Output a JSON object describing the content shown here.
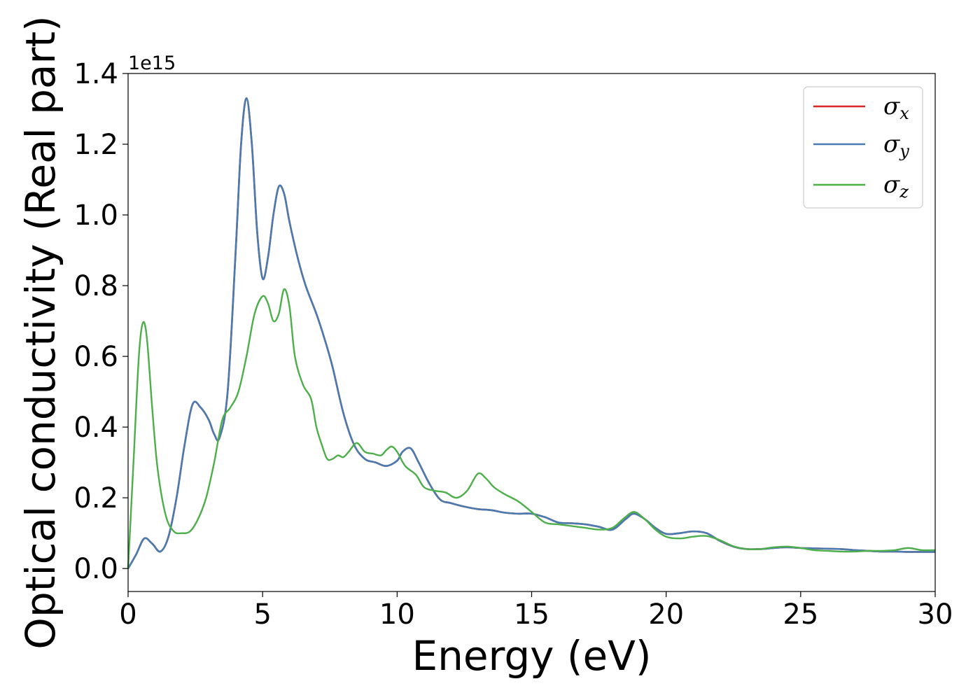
{
  "chart_data": {
    "type": "line",
    "xlabel": "Energy (eV)",
    "ylabel": "Optical conductivity (Real part)",
    "y_offset_label": "1e15",
    "xlim": [
      0,
      30
    ],
    "ylim": [
      -0.065,
      1.4
    ],
    "x_ticks": [
      0,
      5,
      10,
      15,
      20,
      25,
      30
    ],
    "x_tick_labels": [
      "0",
      "5",
      "10",
      "15",
      "20",
      "25",
      "30"
    ],
    "y_ticks": [
      0.0,
      0.2,
      0.4,
      0.6,
      0.8,
      1.0,
      1.2,
      1.4
    ],
    "y_tick_labels": [
      "0.0",
      "0.2",
      "0.4",
      "0.6",
      "0.8",
      "1.0",
      "1.2",
      "1.4"
    ],
    "grid": false,
    "legend_position": "top-right",
    "series": [
      {
        "name": "σx",
        "legend_base": "σ",
        "legend_sub": "x",
        "color": "#d62728",
        "x": [
          0,
          0.3,
          0.6,
          0.9,
          1.2,
          1.5,
          1.8,
          2.1,
          2.4,
          2.7,
          3.0,
          3.2,
          3.4,
          3.7,
          4.0,
          4.2,
          4.4,
          4.6,
          4.8,
          5.0,
          5.2,
          5.4,
          5.6,
          5.8,
          6.0,
          6.3,
          6.6,
          7.0,
          7.3,
          7.6,
          8.0,
          8.4,
          8.8,
          9.2,
          9.6,
          10.0,
          10.2,
          10.5,
          10.8,
          11.2,
          11.6,
          12.0,
          12.5,
          13.0,
          13.5,
          14.0,
          14.5,
          15.0,
          15.5,
          16.0,
          16.5,
          17.0,
          17.5,
          18.0,
          18.5,
          18.8,
          19.2,
          19.6,
          20.0,
          20.5,
          21.0,
          21.5,
          22.0,
          22.5,
          23.0,
          23.5,
          24.0,
          24.5,
          25.0,
          25.5,
          26.0,
          26.5,
          27.0,
          27.5,
          28.0,
          28.5,
          29.0,
          29.5,
          30.0
        ],
        "y": [
          0.0,
          0.04,
          0.085,
          0.07,
          0.048,
          0.09,
          0.2,
          0.35,
          0.465,
          0.455,
          0.42,
          0.38,
          0.37,
          0.5,
          0.9,
          1.2,
          1.33,
          1.2,
          0.95,
          0.82,
          0.88,
          1.0,
          1.08,
          1.06,
          0.98,
          0.88,
          0.8,
          0.72,
          0.65,
          0.57,
          0.44,
          0.35,
          0.31,
          0.3,
          0.29,
          0.305,
          0.33,
          0.34,
          0.3,
          0.24,
          0.195,
          0.185,
          0.175,
          0.168,
          0.165,
          0.158,
          0.155,
          0.155,
          0.145,
          0.13,
          0.128,
          0.125,
          0.118,
          0.11,
          0.14,
          0.155,
          0.14,
          0.115,
          0.098,
          0.1,
          0.105,
          0.1,
          0.078,
          0.062,
          0.055,
          0.055,
          0.058,
          0.06,
          0.058,
          0.057,
          0.056,
          0.055,
          0.052,
          0.05,
          0.048,
          0.048,
          0.047,
          0.047,
          0.047
        ]
      },
      {
        "name": "σy",
        "legend_base": "σ",
        "legend_sub": "y",
        "color": "#4a7bb0",
        "x": [
          0,
          0.3,
          0.6,
          0.9,
          1.2,
          1.5,
          1.8,
          2.1,
          2.4,
          2.7,
          3.0,
          3.2,
          3.4,
          3.7,
          4.0,
          4.2,
          4.4,
          4.6,
          4.8,
          5.0,
          5.2,
          5.4,
          5.6,
          5.8,
          6.0,
          6.3,
          6.6,
          7.0,
          7.3,
          7.6,
          8.0,
          8.4,
          8.8,
          9.2,
          9.6,
          10.0,
          10.2,
          10.5,
          10.8,
          11.2,
          11.6,
          12.0,
          12.5,
          13.0,
          13.5,
          14.0,
          14.5,
          15.0,
          15.5,
          16.0,
          16.5,
          17.0,
          17.5,
          18.0,
          18.5,
          18.8,
          19.2,
          19.6,
          20.0,
          20.5,
          21.0,
          21.5,
          22.0,
          22.5,
          23.0,
          23.5,
          24.0,
          24.5,
          25.0,
          25.5,
          26.0,
          26.5,
          27.0,
          27.5,
          28.0,
          28.5,
          29.0,
          29.5,
          30.0
        ],
        "y": [
          0.0,
          0.04,
          0.085,
          0.07,
          0.048,
          0.09,
          0.2,
          0.35,
          0.465,
          0.455,
          0.42,
          0.38,
          0.37,
          0.5,
          0.9,
          1.2,
          1.33,
          1.2,
          0.95,
          0.82,
          0.88,
          1.0,
          1.08,
          1.06,
          0.98,
          0.88,
          0.8,
          0.72,
          0.65,
          0.57,
          0.44,
          0.35,
          0.31,
          0.3,
          0.29,
          0.305,
          0.33,
          0.34,
          0.3,
          0.24,
          0.195,
          0.185,
          0.175,
          0.168,
          0.165,
          0.158,
          0.155,
          0.155,
          0.145,
          0.13,
          0.128,
          0.125,
          0.118,
          0.11,
          0.14,
          0.155,
          0.14,
          0.115,
          0.098,
          0.1,
          0.105,
          0.1,
          0.078,
          0.062,
          0.055,
          0.055,
          0.058,
          0.06,
          0.058,
          0.057,
          0.056,
          0.055,
          0.052,
          0.05,
          0.048,
          0.048,
          0.047,
          0.047,
          0.047
        ]
      },
      {
        "name": "σz",
        "legend_base": "σ",
        "legend_sub": "z",
        "color": "#4daf4a",
        "x": [
          0,
          0.2,
          0.4,
          0.55,
          0.7,
          0.9,
          1.1,
          1.4,
          1.7,
          2.0,
          2.3,
          2.6,
          2.9,
          3.2,
          3.5,
          3.8,
          4.1,
          4.4,
          4.7,
          5.0,
          5.2,
          5.4,
          5.6,
          5.8,
          6.0,
          6.2,
          6.5,
          6.8,
          7.0,
          7.2,
          7.4,
          7.6,
          7.8,
          8.0,
          8.2,
          8.5,
          8.8,
          9.1,
          9.4,
          9.6,
          9.8,
          10.0,
          10.3,
          10.7,
          11.0,
          11.4,
          11.8,
          12.2,
          12.6,
          13.0,
          13.3,
          13.6,
          14.0,
          14.5,
          15.0,
          15.5,
          16.0,
          16.5,
          17.0,
          17.5,
          18.0,
          18.4,
          18.8,
          19.2,
          19.6,
          20.0,
          20.5,
          21.0,
          21.5,
          22.0,
          22.5,
          23.0,
          23.5,
          24.0,
          24.5,
          25.0,
          25.5,
          26.0,
          26.5,
          27.0,
          27.5,
          28.0,
          28.5,
          29.0,
          29.5,
          30.0
        ],
        "y": [
          0.0,
          0.3,
          0.6,
          0.695,
          0.65,
          0.45,
          0.28,
          0.15,
          0.105,
          0.1,
          0.105,
          0.14,
          0.2,
          0.3,
          0.42,
          0.455,
          0.5,
          0.6,
          0.72,
          0.77,
          0.75,
          0.7,
          0.72,
          0.79,
          0.74,
          0.6,
          0.52,
          0.48,
          0.4,
          0.35,
          0.31,
          0.31,
          0.32,
          0.315,
          0.33,
          0.355,
          0.33,
          0.325,
          0.32,
          0.335,
          0.345,
          0.33,
          0.29,
          0.265,
          0.23,
          0.22,
          0.215,
          0.2,
          0.22,
          0.268,
          0.255,
          0.23,
          0.21,
          0.19,
          0.16,
          0.13,
          0.125,
          0.12,
          0.115,
          0.11,
          0.115,
          0.14,
          0.16,
          0.14,
          0.11,
          0.09,
          0.085,
          0.09,
          0.092,
          0.08,
          0.063,
          0.055,
          0.055,
          0.06,
          0.062,
          0.058,
          0.052,
          0.05,
          0.048,
          0.048,
          0.05,
          0.05,
          0.052,
          0.058,
          0.052,
          0.052
        ]
      }
    ]
  }
}
